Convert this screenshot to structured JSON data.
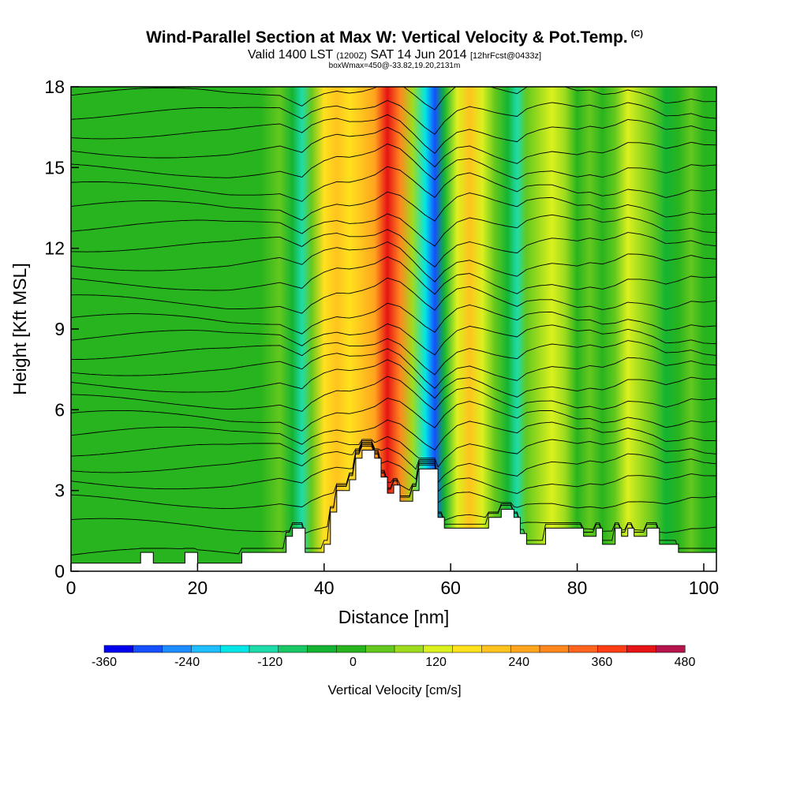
{
  "header": {
    "title": "Wind-Parallel Section at Max W: Vertical Velocity & Pot.Temp.",
    "copyright": "(C)",
    "valid_prefix": "Valid 1400 LST",
    "valid_utc": "(1200Z)",
    "valid_date": "SAT 14 Jun 2014",
    "forecast": "[12hrFcst@0433z]",
    "box_info": "boxWmax=450@-33.82,19.20,2131m"
  },
  "chart_data": {
    "type": "heatmap",
    "xlabel": "Distance [nm]",
    "ylabel": "Height [Kft MSL]",
    "xlim": [
      0,
      102
    ],
    "ylim": [
      0,
      18
    ],
    "x_ticks": [
      "0",
      "20",
      "40",
      "60",
      "80",
      "100"
    ],
    "y_ticks": [
      "0",
      "3",
      "6",
      "9",
      "12",
      "15",
      "18"
    ],
    "velocity_bands": [
      {
        "x": 0,
        "w": 10
      },
      {
        "x": 10,
        "w": 10
      },
      {
        "x": 20,
        "w": 0
      },
      {
        "x": 25,
        "w": -20
      },
      {
        "x": 30,
        "w": 15
      },
      {
        "x": 33,
        "w": 40
      },
      {
        "x": 35,
        "w": -60
      },
      {
        "x": 36.5,
        "w": -130
      },
      {
        "x": 38,
        "w": 30
      },
      {
        "x": 40,
        "w": 150
      },
      {
        "x": 42,
        "w": 210
      },
      {
        "x": 44,
        "w": 170
      },
      {
        "x": 46,
        "w": 200
      },
      {
        "x": 48,
        "w": 260
      },
      {
        "x": 50,
        "w": 400
      },
      {
        "x": 52,
        "w": 300
      },
      {
        "x": 54,
        "w": 80
      },
      {
        "x": 56,
        "w": -160
      },
      {
        "x": 57.5,
        "w": -300
      },
      {
        "x": 59,
        "w": -60
      },
      {
        "x": 61,
        "w": 140
      },
      {
        "x": 63,
        "w": 200
      },
      {
        "x": 65,
        "w": 120
      },
      {
        "x": 67,
        "w": 20
      },
      {
        "x": 69,
        "w": -60
      },
      {
        "x": 70.5,
        "w": -110
      },
      {
        "x": 72,
        "w": 20
      },
      {
        "x": 74,
        "w": 80
      },
      {
        "x": 76,
        "w": 110
      },
      {
        "x": 78,
        "w": 60
      },
      {
        "x": 80,
        "w": 0
      },
      {
        "x": 82,
        "w": 40
      },
      {
        "x": 84,
        "w": -20
      },
      {
        "x": 86,
        "w": 30
      },
      {
        "x": 88,
        "w": 130
      },
      {
        "x": 90,
        "w": 100
      },
      {
        "x": 92,
        "w": 40
      },
      {
        "x": 94,
        "w": -60
      },
      {
        "x": 96,
        "w": -20
      },
      {
        "x": 98,
        "w": 50
      },
      {
        "x": 100,
        "w": 0
      },
      {
        "x": 102,
        "w": 0
      }
    ],
    "terrain_kft": [
      [
        0,
        0.3
      ],
      [
        11,
        0.3
      ],
      [
        11,
        0.7
      ],
      [
        13,
        0.7
      ],
      [
        13,
        0.3
      ],
      [
        18,
        0.3
      ],
      [
        18,
        0.7
      ],
      [
        20,
        0.7
      ],
      [
        20,
        0.3
      ],
      [
        27,
        0.3
      ],
      [
        27,
        0.7
      ],
      [
        34,
        0.7
      ],
      [
        34,
        1.3
      ],
      [
        35,
        1.3
      ],
      [
        35,
        1.6
      ],
      [
        37,
        1.6
      ],
      [
        37,
        0.7
      ],
      [
        40,
        0.7
      ],
      [
        40,
        1.0
      ],
      [
        41,
        1.0
      ],
      [
        41,
        2.2
      ],
      [
        42,
        2.2
      ],
      [
        42,
        3.0
      ],
      [
        44,
        3.0
      ],
      [
        44,
        3.4
      ],
      [
        45,
        3.4
      ],
      [
        45,
        4.2
      ],
      [
        46,
        4.2
      ],
      [
        46,
        4.5
      ],
      [
        48,
        4.5
      ],
      [
        48,
        4.2
      ],
      [
        49,
        4.2
      ],
      [
        49,
        3.5
      ],
      [
        50,
        3.5
      ],
      [
        50,
        2.9
      ],
      [
        51,
        2.9
      ],
      [
        51,
        3.2
      ],
      [
        52,
        3.2
      ],
      [
        52,
        2.6
      ],
      [
        54,
        2.6
      ],
      [
        54,
        3.0
      ],
      [
        55,
        3.0
      ],
      [
        55,
        3.8
      ],
      [
        58,
        3.8
      ],
      [
        58,
        2.0
      ],
      [
        59,
        2.0
      ],
      [
        59,
        1.6
      ],
      [
        66,
        1.6
      ],
      [
        66,
        2.0
      ],
      [
        68,
        2.0
      ],
      [
        68,
        2.3
      ],
      [
        70,
        2.3
      ],
      [
        70,
        2.0
      ],
      [
        71,
        2.0
      ],
      [
        71,
        1.4
      ],
      [
        72,
        1.4
      ],
      [
        72,
        1.0
      ],
      [
        75,
        1.0
      ],
      [
        75,
        1.6
      ],
      [
        81,
        1.6
      ],
      [
        81,
        1.3
      ],
      [
        83,
        1.3
      ],
      [
        83,
        1.6
      ],
      [
        84,
        1.6
      ],
      [
        84,
        1.0
      ],
      [
        86,
        1.0
      ],
      [
        86,
        1.6
      ],
      [
        87,
        1.6
      ],
      [
        87,
        1.3
      ],
      [
        88,
        1.3
      ],
      [
        88,
        1.6
      ],
      [
        89,
        1.6
      ],
      [
        89,
        1.3
      ],
      [
        91,
        1.3
      ],
      [
        91,
        1.6
      ],
      [
        93,
        1.6
      ],
      [
        93,
        1.0
      ],
      [
        96,
        1.0
      ],
      [
        96,
        0.7
      ],
      [
        102,
        0.7
      ]
    ],
    "theta_contours_kft": [
      0.6,
      1.7,
      2.6,
      3.3,
      3.9,
      4.5,
      5.1,
      5.7,
      6.3,
      6.9,
      7.5,
      8.1,
      8.7,
      9.3,
      10.0,
      10.7,
      11.4,
      12.1,
      12.8,
      13.5,
      14.2,
      14.9,
      15.6,
      16.3,
      17.0,
      17.7
    ]
  },
  "colorbar": {
    "ticks": [
      "-360",
      "-240",
      "-120",
      "0",
      "120",
      "240",
      "360",
      "480"
    ],
    "label": "Vertical Velocity [cm/s]",
    "colors": [
      "#0000ee",
      "#1450ff",
      "#1e8cff",
      "#1ebeff",
      "#00e6e6",
      "#1edcaa",
      "#19c864",
      "#14b432",
      "#28b41e",
      "#64c81e",
      "#a0dc1e",
      "#dcf01e",
      "#ffe11e",
      "#ffc31e",
      "#ffa51e",
      "#ff871e",
      "#ff641e",
      "#ff3c14",
      "#e61414",
      "#b4144b"
    ]
  }
}
